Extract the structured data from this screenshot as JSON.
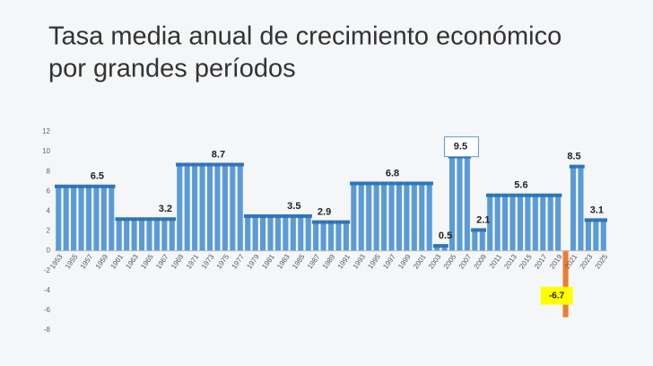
{
  "chart_data": {
    "type": "bar",
    "title": [
      "Tasa media anual de crecimiento económico",
      "por grandes períodos"
    ],
    "categories": [
      "1953",
      null,
      "1955",
      null,
      "1957",
      null,
      "1959",
      null,
      "1961",
      null,
      "1963",
      null,
      "1965",
      null,
      "1967",
      null,
      "1969",
      null,
      "1971",
      null,
      "1973",
      null,
      "1975",
      null,
      "1977",
      null,
      "1979",
      null,
      "1981",
      null,
      "1983",
      null,
      "1985",
      null,
      "1987",
      null,
      "1989",
      null,
      "1991",
      null,
      "1993",
      null,
      "1995",
      null,
      "1997",
      null,
      "1999",
      null,
      "2001",
      null,
      "2003",
      null,
      "2005",
      null,
      "2007",
      null,
      "2009",
      null,
      "2011",
      null,
      "2013",
      null,
      "2015",
      null,
      "2017",
      null,
      "2019",
      null,
      "2021",
      null,
      "2023",
      null,
      "2025"
    ],
    "values": [
      6.5,
      6.5,
      6.5,
      6.5,
      6.5,
      6.5,
      6.5,
      6.5,
      3.2,
      3.2,
      3.2,
      3.2,
      3.2,
      3.2,
      3.2,
      3.2,
      8.7,
      8.7,
      8.7,
      8.7,
      8.7,
      8.7,
      8.7,
      8.7,
      8.7,
      3.5,
      3.5,
      3.5,
      3.5,
      3.5,
      3.5,
      3.5,
      3.5,
      3.5,
      2.9,
      2.9,
      2.9,
      2.9,
      2.9,
      6.8,
      6.8,
      6.8,
      6.8,
      6.8,
      6.8,
      6.8,
      6.8,
      6.8,
      6.8,
      6.8,
      0.5,
      0.5,
      9.5,
      9.5,
      9.5,
      2.1,
      2.1,
      5.6,
      5.6,
      5.6,
      5.6,
      5.6,
      5.6,
      5.6,
      5.6,
      5.6,
      5.6,
      -6.7,
      8.5,
      8.5,
      3.1,
      3.1,
      3.1
    ],
    "value_labels": [
      null,
      null,
      null,
      null,
      null,
      "6.5",
      null,
      null,
      null,
      null,
      null,
      null,
      null,
      null,
      "3.2",
      null,
      null,
      null,
      null,
      null,
      null,
      "8.7",
      null,
      null,
      null,
      null,
      null,
      null,
      null,
      null,
      null,
      "3.5",
      null,
      null,
      null,
      "2.9",
      null,
      null,
      null,
      null,
      null,
      null,
      null,
      null,
      "6.8",
      null,
      null,
      null,
      null,
      null,
      null,
      "0.5",
      null,
      "9.5",
      null,
      null,
      "2.1",
      null,
      null,
      null,
      null,
      "5.6",
      null,
      null,
      null,
      null,
      null,
      "-6.7",
      "8.5",
      null,
      null,
      "3.1",
      null
    ],
    "color": "#5b9bd5",
    "cap_color": "#2e75b6",
    "negative_color": "#ed7d31",
    "ylim": [
      -8,
      12
    ],
    "yticks": [
      -8,
      -6,
      -4,
      -2,
      0,
      2,
      4,
      6,
      8,
      10,
      12
    ],
    "grid": false
  }
}
